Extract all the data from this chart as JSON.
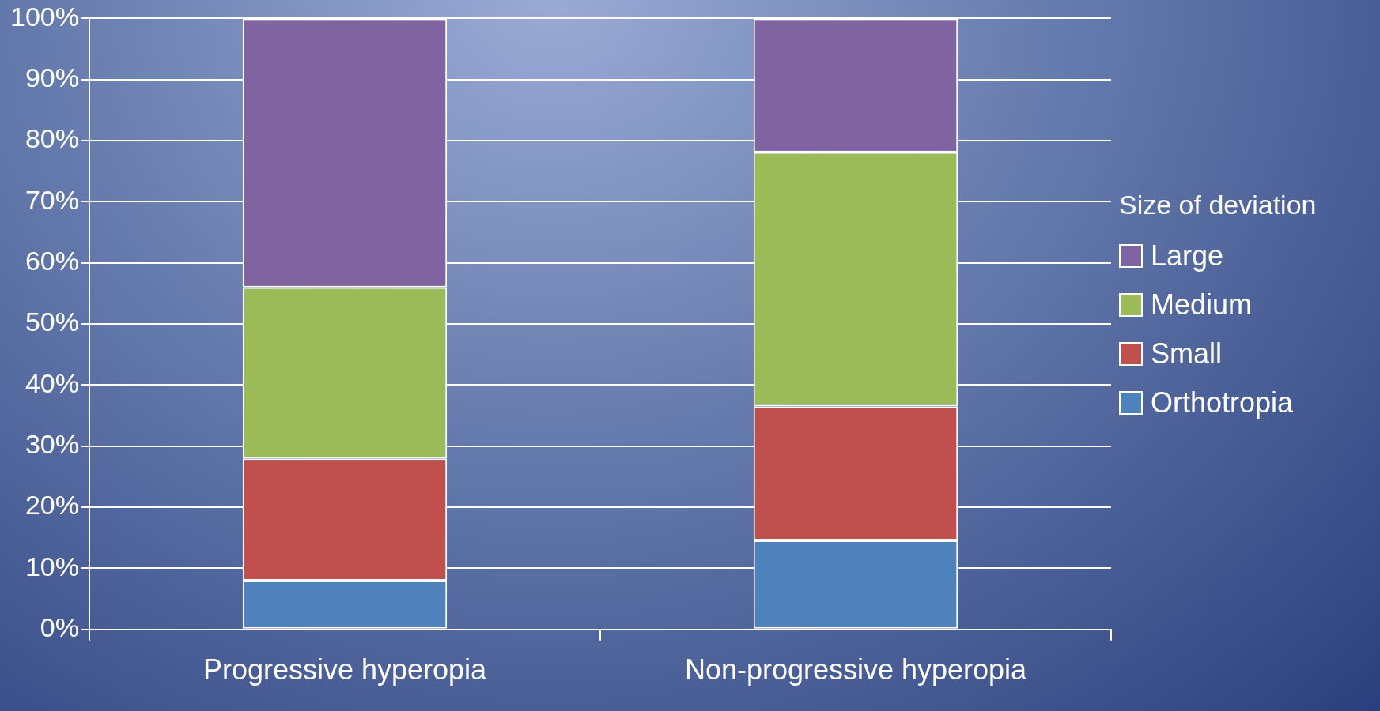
{
  "chart_data": {
    "type": "bar",
    "stacked": true,
    "legend_title": "Size of deviation",
    "legend": "right",
    "grid": "y",
    "categories": [
      "Progressive hyperopia",
      "Non-progressive hyperopia"
    ],
    "series": [
      {
        "name": "Orthotropia",
        "color": "#4f81bd",
        "values": [
          8,
          14.6
        ]
      },
      {
        "name": "Small",
        "color": "#c0504d",
        "values": [
          20,
          21.9
        ]
      },
      {
        "name": "Medium",
        "color": "#9bbb59",
        "values": [
          28,
          41.6
        ]
      },
      {
        "name": "Large",
        "color": "#8064a2",
        "values": [
          44,
          21.9
        ]
      }
    ],
    "ylim": [
      0,
      100
    ],
    "yticks": [
      {
        "value": 0,
        "label": "0%"
      },
      {
        "value": 10,
        "label": "10%"
      },
      {
        "value": 20,
        "label": "20%"
      },
      {
        "value": 30,
        "label": "30%"
      },
      {
        "value": 40,
        "label": "40%"
      },
      {
        "value": 50,
        "label": "50%"
      },
      {
        "value": 60,
        "label": "60%"
      },
      {
        "value": 70,
        "label": "70%"
      },
      {
        "value": 80,
        "label": "80%"
      },
      {
        "value": 90,
        "label": "90%"
      },
      {
        "value": 100,
        "label": "100%"
      }
    ]
  }
}
